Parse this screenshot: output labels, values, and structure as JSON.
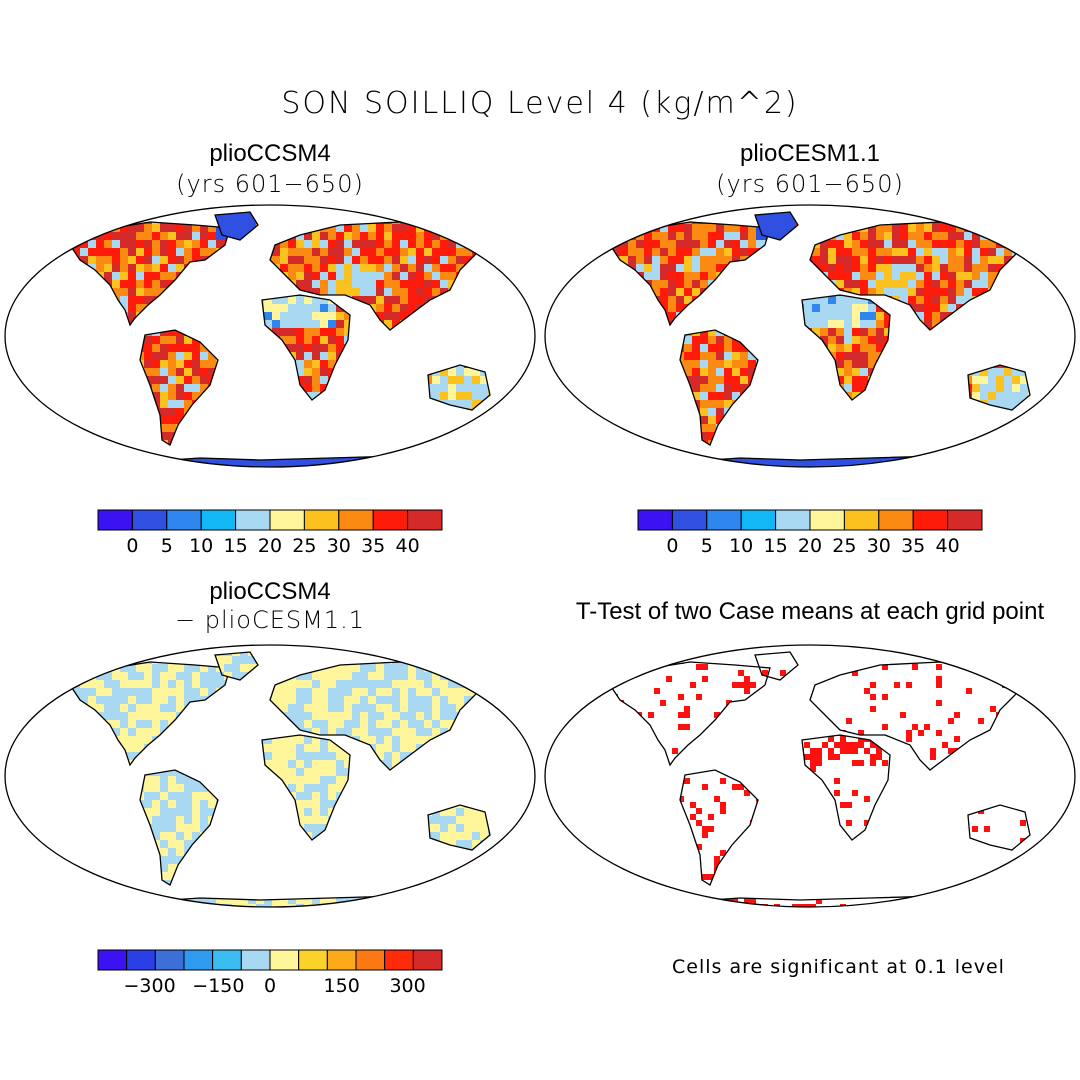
{
  "title": "SON SOILLIQ Level 4 (kg/m^2)",
  "panels": [
    {
      "title": "plioCCSM4",
      "subtitle": "(yrs 601−650)",
      "field": "absolute"
    },
    {
      "title": "plioCESM1.1",
      "subtitle": "(yrs 601−650)",
      "field": "absolute"
    },
    {
      "title": "plioCCSM4",
      "subtitle": "− plioCESM1.1",
      "field": "difference"
    },
    {
      "title": "T-Test of two Case means at each grid point",
      "subtitle": "",
      "field": "ttest"
    }
  ],
  "colorbar_abs": {
    "colors": [
      "#3b12f2",
      "#2f50e0",
      "#2f86ee",
      "#12b8f6",
      "#a8d8f2",
      "#fff59a",
      "#fbc21f",
      "#fa8a12",
      "#ff1b0a",
      "#d42a2a"
    ],
    "labels": [
      "0",
      "5",
      "10",
      "15",
      "20",
      "25",
      "30",
      "35",
      "40"
    ]
  },
  "colorbar_diff": {
    "colors": [
      "#3b12f2",
      "#2b3fe6",
      "#3c6fd8",
      "#2f9bf0",
      "#3cbdf2",
      "#a8d8f2",
      "#fff59a",
      "#fbd22a",
      "#fba819",
      "#fb7812",
      "#ff2a0a",
      "#d42a2a"
    ],
    "labels": [
      "−300",
      "−150",
      "0",
      "150",
      "300"
    ]
  },
  "note": "Cells are significant at 0.1 level"
}
